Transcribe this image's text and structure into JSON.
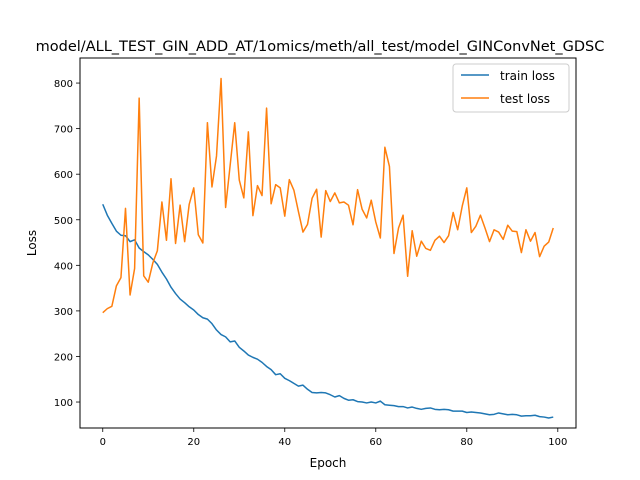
{
  "chart_data": {
    "type": "line",
    "title": "model/ALL_TEST_GIN_ADD_AT/1omics/meth/all_test/model_GINConvNet_GDSC",
    "xlabel": "Epoch",
    "ylabel": "Loss",
    "xlim": [
      -5,
      104
    ],
    "ylim": [
      43,
      855
    ],
    "xticks": [
      0,
      20,
      40,
      60,
      80,
      100
    ],
    "yticks": [
      100,
      200,
      300,
      400,
      500,
      600,
      700,
      800
    ],
    "grid": false,
    "legend_position": "top-right",
    "series": [
      {
        "name": "train loss",
        "color": "#1f77b4",
        "values": [
          534,
          510,
          492,
          475,
          466,
          465,
          452,
          456,
          438,
          430,
          423,
          413,
          402,
          385,
          370,
          352,
          338,
          326,
          318,
          309,
          302,
          292,
          285,
          282,
          272,
          258,
          248,
          243,
          232,
          234,
          220,
          212,
          203,
          198,
          194,
          187,
          178,
          171,
          160,
          162,
          152,
          147,
          141,
          135,
          137,
          128,
          121,
          120,
          121,
          120,
          116,
          111,
          114,
          108,
          104,
          105,
          101,
          100,
          98,
          100,
          98,
          102,
          94,
          93,
          92,
          90,
          90,
          87,
          89,
          86,
          84,
          86,
          87,
          84,
          83,
          84,
          83,
          80,
          80,
          80,
          77,
          78,
          77,
          76,
          74,
          72,
          73,
          76,
          74,
          72,
          73,
          72,
          69,
          70,
          70,
          71,
          68,
          67,
          65,
          67
        ]
      },
      {
        "name": "test loss",
        "color": "#ff7f0e",
        "values": [
          296,
          305,
          310,
          355,
          373,
          525,
          335,
          393,
          767,
          377,
          363,
          405,
          432,
          539,
          455,
          590,
          448,
          532,
          452,
          534,
          570,
          467,
          449,
          713,
          572,
          640,
          810,
          527,
          620,
          713,
          587,
          548,
          693,
          509,
          575,
          553,
          745,
          535,
          577,
          570,
          508,
          588,
          565,
          518,
          473,
          490,
          547,
          567,
          462,
          564,
          540,
          559,
          537,
          539,
          532,
          489,
          566,
          523,
          504,
          543,
          495,
          460,
          659,
          617,
          426,
          482,
          510,
          376,
          476,
          420,
          453,
          437,
          433,
          455,
          464,
          450,
          465,
          516,
          478,
          530,
          570,
          472,
          486,
          510,
          482,
          452,
          478,
          473,
          457,
          488,
          475,
          474,
          428,
          478,
          453,
          472,
          419,
          442,
          451,
          482
        ]
      }
    ]
  }
}
